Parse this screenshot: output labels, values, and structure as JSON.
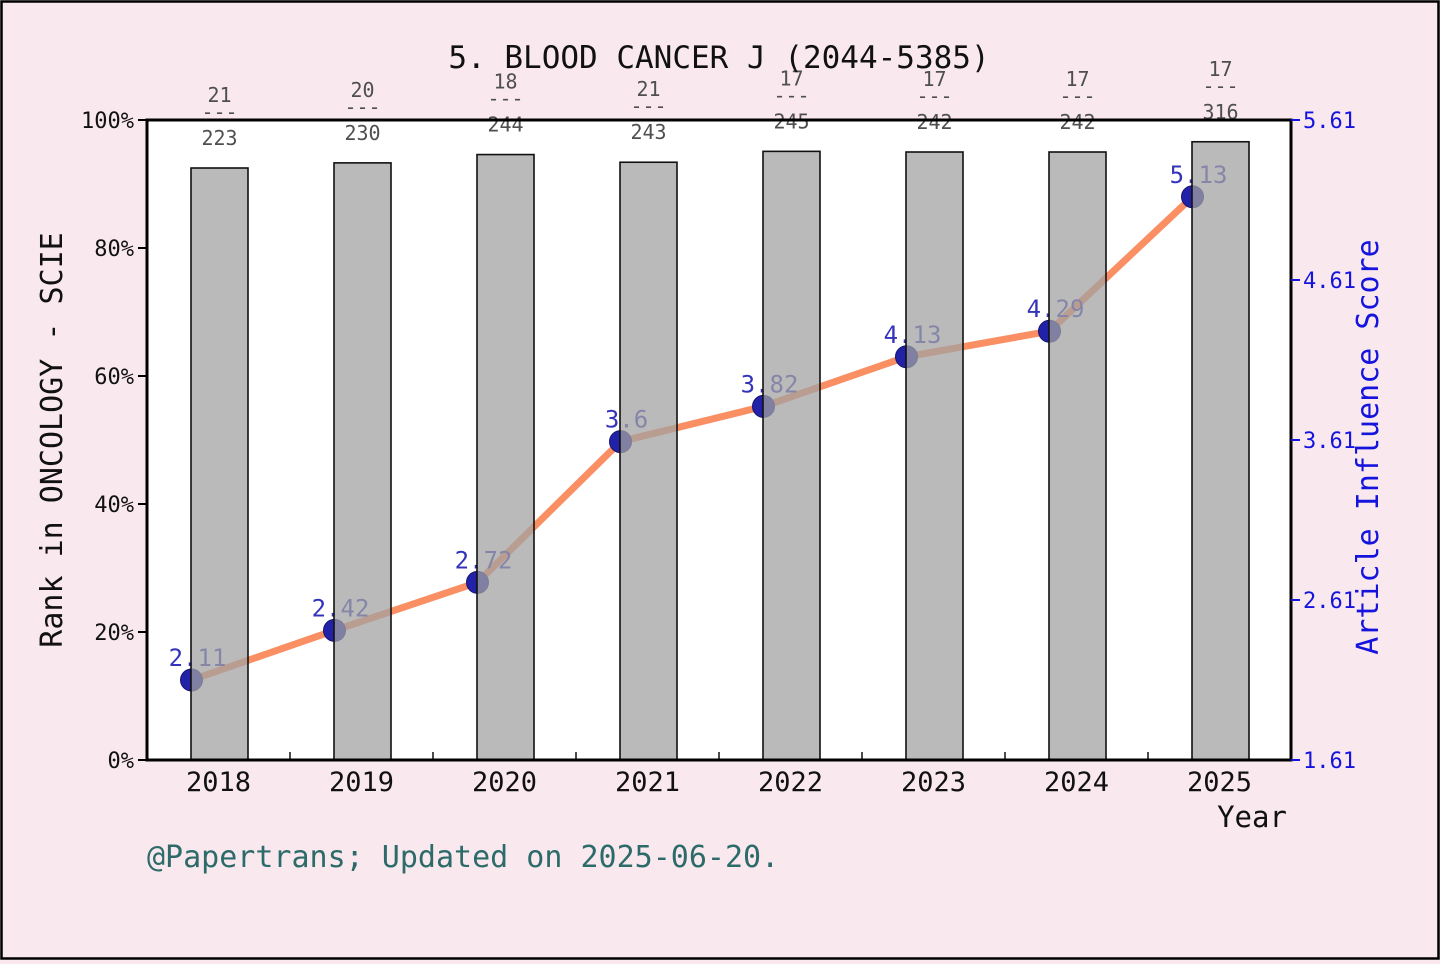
{
  "page": {
    "background_color": "#f9e9ee",
    "frame_color": "#000000",
    "plot_background": "#ffffff"
  },
  "chart_data": {
    "type": "combo-bar-line",
    "title": "5. BLOOD CANCER J (2044-5385)",
    "xlabel": "Year",
    "categories": [
      "2018",
      "2019",
      "2020",
      "2021",
      "2022",
      "2023",
      "2024",
      "2025"
    ],
    "left_axis": {
      "label": "Rank in ONCOLOGY - SCIE",
      "tick_labels": [
        "0%",
        "20%",
        "40%",
        "60%",
        "80%",
        "100%"
      ],
      "tick_values": [
        0,
        20,
        40,
        60,
        80,
        100
      ],
      "range": [
        0,
        100
      ],
      "color": "#111111"
    },
    "right_axis": {
      "label": "Article Influence Score",
      "tick_labels": [
        "1.61",
        "2.61",
        "3.61",
        "4.61",
        "5.61"
      ],
      "tick_values": [
        1.61,
        2.61,
        3.61,
        4.61,
        5.61
      ],
      "range": [
        1.61,
        5.61
      ],
      "color": "#1414dd"
    },
    "series": [
      {
        "name": "rank-percentile-bars",
        "type": "bar",
        "axis": "left",
        "values_percent": [
          92.5,
          93.3,
          94.6,
          93.4,
          95.1,
          95.0,
          95.0,
          96.6
        ],
        "rank_fractions": [
          {
            "numerator": "21",
            "denominator": "223"
          },
          {
            "numerator": "20",
            "denominator": "230"
          },
          {
            "numerator": "18",
            "denominator": "244"
          },
          {
            "numerator": "21",
            "denominator": "243"
          },
          {
            "numerator": "17",
            "denominator": "245"
          },
          {
            "numerator": "17",
            "denominator": "242"
          },
          {
            "numerator": "17",
            "denominator": "242"
          },
          {
            "numerator": "17",
            "denominator": "316"
          }
        ],
        "fraction_separator": "---",
        "fraction_color": "#4f4f4f",
        "bar_fill": "#a2a2a2",
        "bar_edge": "#111111"
      },
      {
        "name": "article-influence-score-line",
        "type": "line",
        "axis": "right",
        "values": [
          2.11,
          2.42,
          2.72,
          3.6,
          3.82,
          4.13,
          4.29,
          5.13
        ],
        "point_labels": [
          "2.11",
          "2.42",
          "2.72",
          "3.6",
          "3.82",
          "4.13",
          "4.29",
          "5.13"
        ],
        "line_color": "#f98f63",
        "marker_color": "#2222a8",
        "marker_edge": "#15156e",
        "label_color": "#3434bb"
      }
    ],
    "caption": {
      "text": "@Papertrans; Updated on 2025-06-20.",
      "color": "#2d6a6a"
    }
  }
}
